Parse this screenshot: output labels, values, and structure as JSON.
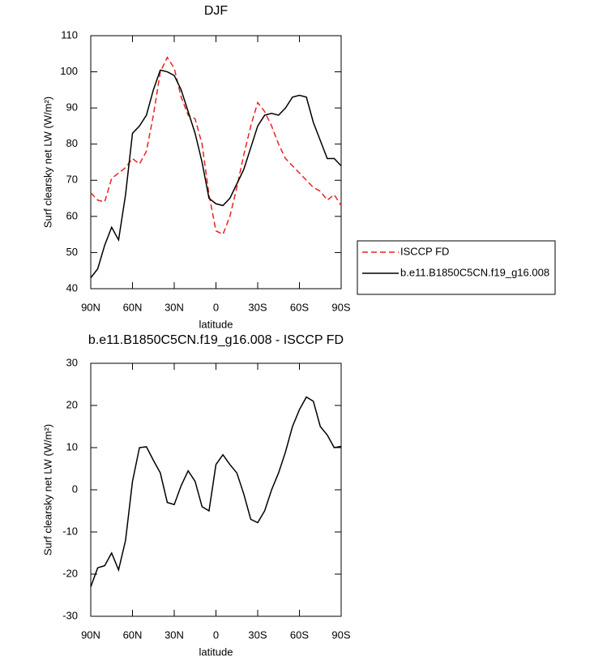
{
  "chart_data": [
    {
      "type": "line",
      "title": "DJF",
      "xlabel": "latitude",
      "ylabel": "Surf clearsky net LW (W/m²)",
      "x": [
        90,
        85,
        80,
        75,
        70,
        65,
        60,
        55,
        50,
        45,
        40,
        35,
        30,
        25,
        20,
        15,
        10,
        5,
        0,
        -5,
        -10,
        -15,
        -20,
        -25,
        -30,
        -35,
        -40,
        -45,
        -50,
        -55,
        -60,
        -65,
        -70,
        -75,
        -80,
        -85,
        -90
      ],
      "xlim": [
        90,
        -90
      ],
      "xticks": [
        {
          "value": 90,
          "label": "90N"
        },
        {
          "value": 60,
          "label": "60N"
        },
        {
          "value": 30,
          "label": "30N"
        },
        0,
        {
          "value": -30,
          "label": "30S"
        },
        {
          "value": -60,
          "label": "60S"
        },
        {
          "value": -90,
          "label": "90S"
        }
      ],
      "ylim": [
        40,
        110
      ],
      "yticks": [
        40,
        50,
        60,
        70,
        80,
        90,
        100,
        110
      ],
      "legend": "right",
      "series": [
        {
          "name": "ISCCP FD",
          "color": "#e8231f",
          "line_style": "dashed",
          "values": [
            66.5,
            64.5,
            64,
            70.5,
            72,
            73.5,
            76,
            74.5,
            78,
            88,
            100,
            104,
            101,
            93,
            88,
            87,
            80,
            66,
            56,
            55,
            60,
            68,
            77,
            85,
            91.5,
            89,
            85,
            80,
            76,
            74,
            72,
            70,
            68,
            67,
            64.5,
            66,
            63
          ]
        },
        {
          "name": "b.e11.B1850C5CN.f19_g16.008",
          "color": "#000000",
          "line_style": "solid",
          "values": [
            43,
            45.5,
            52,
            57,
            53.5,
            66,
            83,
            85,
            88,
            95,
            100.5,
            100,
            99,
            95,
            89,
            83,
            75,
            65,
            63.5,
            63,
            65,
            69,
            73,
            79,
            85,
            88,
            88.5,
            88,
            90,
            93,
            93.5,
            93,
            86,
            81,
            76,
            76,
            74
          ]
        }
      ]
    },
    {
      "type": "line",
      "title": "b.e11.B1850C5CN.f19_g16.008 - ISCCP FD",
      "xlabel": "latitude",
      "ylabel": "Surf clearsky net LW (W/m²)",
      "x": [
        90,
        85,
        80,
        75,
        70,
        65,
        60,
        55,
        50,
        45,
        40,
        35,
        30,
        25,
        20,
        15,
        10,
        5,
        0,
        -5,
        -10,
        -15,
        -20,
        -25,
        -30,
        -35,
        -40,
        -45,
        -50,
        -55,
        -60,
        -65,
        -70,
        -75,
        -80,
        -85,
        -90
      ],
      "xlim": [
        90,
        -90
      ],
      "xticks": [
        {
          "value": 90,
          "label": "90N"
        },
        {
          "value": 60,
          "label": "60N"
        },
        {
          "value": 30,
          "label": "30N"
        },
        0,
        {
          "value": -30,
          "label": "30S"
        },
        {
          "value": -60,
          "label": "60S"
        },
        {
          "value": -90,
          "label": "90S"
        }
      ],
      "ylim": [
        -30,
        30
      ],
      "yticks": [
        -30,
        -20,
        -10,
        0,
        10,
        20,
        30
      ],
      "series": [
        {
          "color": "#000000",
          "line_style": "solid",
          "values": [
            -23,
            -18.5,
            -18,
            -15,
            -19,
            -12,
            2,
            10,
            10.2,
            7,
            4,
            -3,
            -3.5,
            1,
            4.5,
            2,
            -4,
            -5,
            6,
            8.3,
            6,
            4,
            -1,
            -7,
            -7.8,
            -5,
            0,
            4,
            9,
            15,
            19,
            22,
            21,
            15,
            13,
            10,
            10.3
          ]
        }
      ]
    }
  ]
}
